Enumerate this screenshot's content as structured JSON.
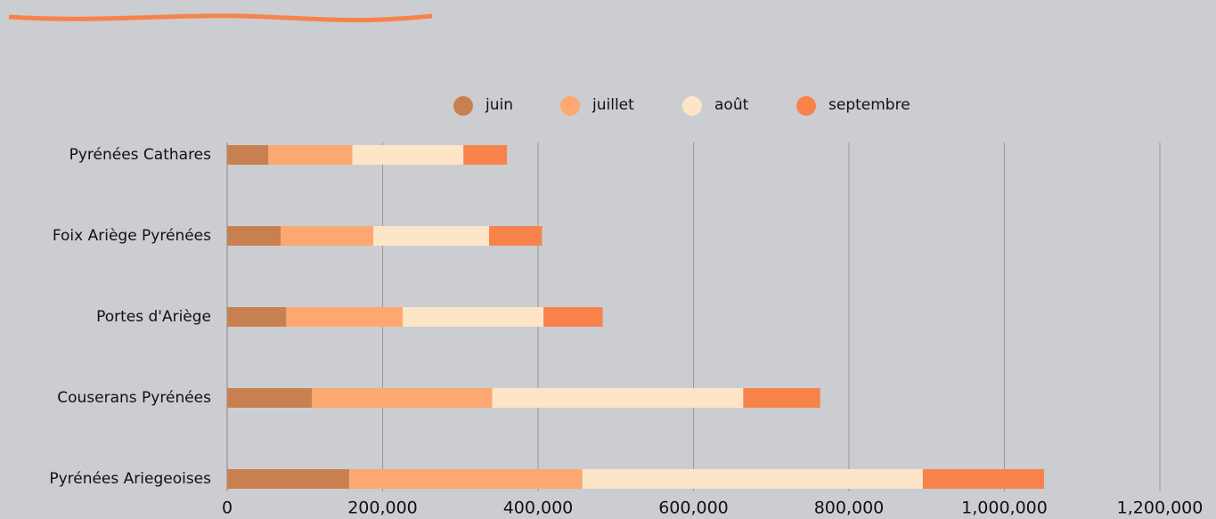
{
  "chart_data": {
    "type": "stacked-hbar",
    "categories": [
      "Pyrénées Cathares",
      "Foix Ariège Pyrénées",
      "Portes d'Ariège",
      "Couserans Pyrénées",
      "Pyrénées Ariegeoises"
    ],
    "series": [
      {
        "name": "juin",
        "color": "#c98050",
        "values": [
          53000,
          69000,
          76000,
          109000,
          157000
        ]
      },
      {
        "name": "juillet",
        "color": "#fca870",
        "values": [
          108000,
          119000,
          150000,
          232000,
          300000
        ]
      },
      {
        "name": "août",
        "color": "#fde5c8",
        "values": [
          143000,
          149000,
          181000,
          323000,
          438000
        ]
      },
      {
        "name": "septembre",
        "color": "#f8834a",
        "values": [
          56000,
          68000,
          76000,
          99000,
          156000
        ]
      }
    ],
    "xlim": [
      0,
      1200000
    ],
    "xticks": [
      0,
      {
        "value": 200000,
        "label": "200,000"
      },
      {
        "value": 400000,
        "label": "400,000"
      },
      {
        "value": 600000,
        "label": "600,000"
      },
      {
        "value": 800000,
        "label": "800,000"
      },
      {
        "value": 1000000,
        "label": "1,000,000"
      },
      {
        "value": 1200000,
        "label": "1,200,000"
      }
    ],
    "grid": true,
    "legend": "top"
  }
}
